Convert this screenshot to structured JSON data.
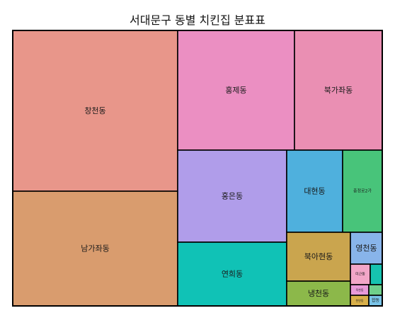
{
  "chart_data": {
    "type": "treemap",
    "title": "서대문구 동별 치킨집 분표표",
    "items": [
      {
        "label": "창천동",
        "value": 1850,
        "color": "#e8968a"
      },
      {
        "label": "남가좌동",
        "value": 1300,
        "color": "#d99c6e"
      },
      {
        "label": "홍제동",
        "value": 745,
        "color": "#eb8fc2"
      },
      {
        "label": "북가좌동",
        "value": 550,
        "color": "#ea8fb3"
      },
      {
        "label": "홍은동",
        "value": 685,
        "color": "#b09dea"
      },
      {
        "label": "대현동",
        "value": 250,
        "color": "#4fb0dd"
      },
      {
        "label": "충정로2가",
        "value": 180,
        "color": "#48c47a"
      },
      {
        "label": "연희동",
        "value": 540,
        "color": "#10c2b6"
      },
      {
        "label": "북아현동",
        "value": 190,
        "color": "#caa54e"
      },
      {
        "label": "냉천동",
        "value": 105,
        "color": "#8cb84a"
      },
      {
        "label": "영천동",
        "value": 70,
        "color": "#88b4ea"
      },
      {
        "label": "미근동",
        "value": 30,
        "color": "#f2a6c8"
      },
      {
        "label": "",
        "value": 12,
        "color": "#16c3b0"
      },
      {
        "label": "옥천동",
        "value": 16,
        "color": "#e89ad9"
      },
      {
        "label": "",
        "value": 8,
        "color": "#6fcf8a"
      },
      {
        "label": "천연동",
        "value": 14,
        "color": "#d9b04a"
      },
      {
        "label": "합동",
        "value": 10,
        "color": "#7ac4e8"
      }
    ]
  }
}
